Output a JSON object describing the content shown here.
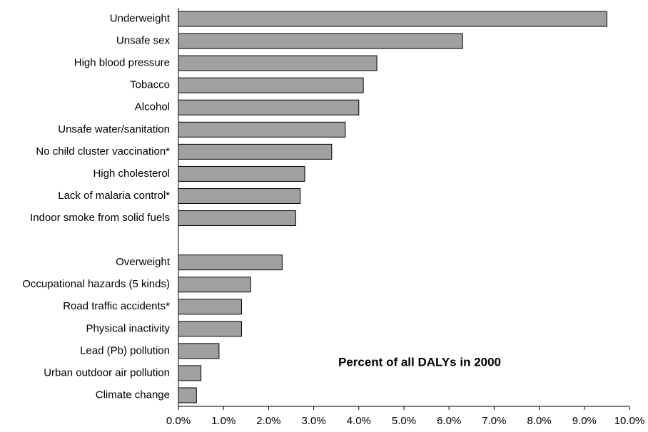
{
  "chart_data": {
    "type": "barh",
    "annotation": "Percent of all DALYs in 2000",
    "categories": [
      "Underweight",
      "Unsafe sex",
      "High blood pressure",
      "Tobacco",
      "Alcohol",
      "Unsafe water/sanitation",
      "No child cluster vaccination*",
      "High cholesterol",
      "Lack of malaria control*",
      "Indoor smoke from solid fuels",
      null,
      "Overweight",
      "Occupational hazards (5 kinds)",
      "Road traffic accidents*",
      "Physical inactivity",
      "Lead (Pb) pollution",
      "Urban outdoor air pollution",
      "Climate change"
    ],
    "values": [
      9.5,
      6.3,
      4.4,
      4.1,
      4.0,
      3.7,
      3.4,
      2.8,
      2.7,
      2.6,
      null,
      2.3,
      1.6,
      1.4,
      1.4,
      0.9,
      0.5,
      0.4
    ],
    "color": "#a0a0a0",
    "xlim": [
      0,
      10
    ],
    "xticks": [
      {
        "value": 0,
        "label": "0.0%"
      },
      {
        "value": 1,
        "label": "1.0%"
      },
      {
        "value": 2,
        "label": "2.0%"
      },
      {
        "value": 3,
        "label": "3.0%"
      },
      {
        "value": 4,
        "label": "4.0%"
      },
      {
        "value": 5,
        "label": "5.0%"
      },
      {
        "value": 6,
        "label": "6.0%"
      },
      {
        "value": 7,
        "label": "7.0%"
      },
      {
        "value": 8,
        "label": "8.0%"
      },
      {
        "value": 9,
        "label": "9.0%"
      },
      {
        "value": 10,
        "label": "10.0%"
      }
    ],
    "grid": false
  }
}
